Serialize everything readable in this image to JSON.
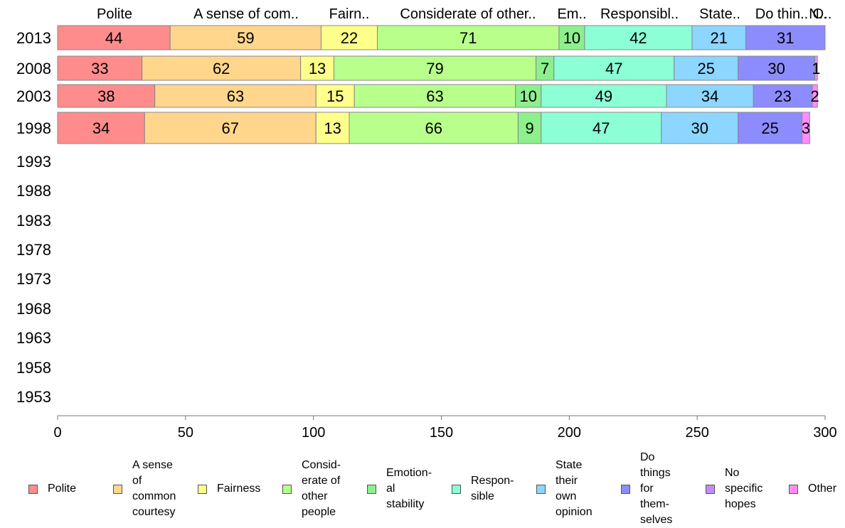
{
  "chart_data": {
    "type": "bar",
    "orientation": "horizontal",
    "stacked": true,
    "categories": [
      "2013",
      "2008",
      "2003",
      "1998",
      "1993",
      "1988",
      "1983",
      "1978",
      "1973",
      "1968",
      "1963",
      "1958",
      "1953"
    ],
    "xlim": [
      0,
      300
    ],
    "xticks": [
      "0",
      "50",
      "100",
      "150",
      "200",
      "250",
      "300"
    ],
    "grid": false,
    "legend_position": "bottom",
    "top_labels": [
      "Polite",
      "A sense of com..",
      "Fairn..",
      "Considerate of other..",
      "Em..",
      "Responsibl..",
      "State..",
      "Do thin..",
      "N..",
      "O.."
    ],
    "series": [
      {
        "name": "Polite",
        "legend_label": "Polite",
        "color": "#ff8c8c",
        "values": [
          44,
          33,
          38,
          34,
          null,
          null,
          null,
          null,
          null,
          null,
          null,
          null,
          null
        ]
      },
      {
        "name": "A sense of common courtesy",
        "legend_label": "A sense\nof\ncommon\ncourtesy",
        "color": "#ffd68c",
        "values": [
          59,
          62,
          63,
          67,
          null,
          null,
          null,
          null,
          null,
          null,
          null,
          null,
          null
        ]
      },
      {
        "name": "Fairness",
        "legend_label": "Fairness",
        "color": "#ffff8c",
        "values": [
          22,
          13,
          15,
          13,
          null,
          null,
          null,
          null,
          null,
          null,
          null,
          null,
          null
        ]
      },
      {
        "name": "Considerate of other people",
        "legend_label": "Consid-\nerate of\nother\npeople",
        "color": "#b8ff8c",
        "values": [
          71,
          79,
          63,
          66,
          null,
          null,
          null,
          null,
          null,
          null,
          null,
          null,
          null
        ]
      },
      {
        "name": "Emotional stability",
        "legend_label": "Emotion-\nal\nstability",
        "color": "#8cf08c",
        "values": [
          10,
          7,
          10,
          9,
          null,
          null,
          null,
          null,
          null,
          null,
          null,
          null,
          null
        ]
      },
      {
        "name": "Responsible",
        "legend_label": "Respon-\nsible",
        "color": "#8cffd6",
        "values": [
          42,
          47,
          49,
          47,
          null,
          null,
          null,
          null,
          null,
          null,
          null,
          null,
          null
        ]
      },
      {
        "name": "State their own opinion",
        "legend_label": "State\ntheir\nown\nopinion",
        "color": "#8cd6ff",
        "values": [
          21,
          25,
          34,
          30,
          null,
          null,
          null,
          null,
          null,
          null,
          null,
          null,
          null
        ]
      },
      {
        "name": "Do things for themselves",
        "legend_label": "Do\nthings\nfor\nthem-\nselves",
        "color": "#8c8cff",
        "values": [
          31,
          30,
          23,
          25,
          null,
          null,
          null,
          null,
          null,
          null,
          null,
          null,
          null
        ]
      },
      {
        "name": "No specific hopes",
        "legend_label": "No\nspecific\nhopes",
        "color": "#c08cff",
        "values": [
          0,
          0,
          0,
          0,
          null,
          null,
          null,
          null,
          null,
          null,
          null,
          null,
          null
        ]
      },
      {
        "name": "Other",
        "legend_label": "Other",
        "color": "#ff8cff",
        "values": [
          0,
          1,
          2,
          3,
          null,
          null,
          null,
          null,
          null,
          null,
          null,
          null,
          null
        ]
      }
    ]
  }
}
